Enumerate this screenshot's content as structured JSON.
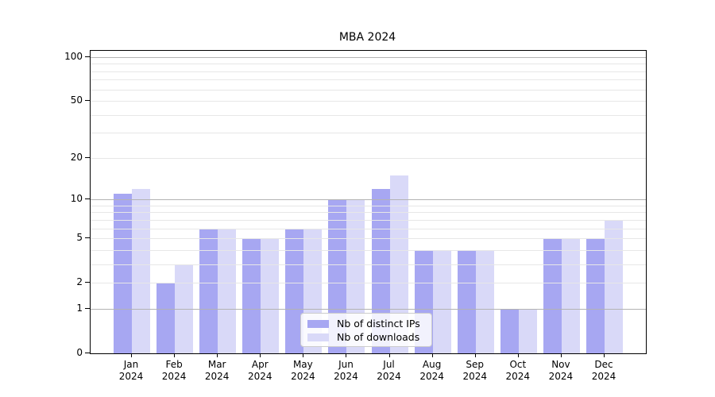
{
  "title": "MBA 2024",
  "chart_data": {
    "type": "bar",
    "title": "MBA 2024",
    "categories": [
      "Jan",
      "Feb",
      "Mar",
      "Apr",
      "May",
      "Jun",
      "Jul",
      "Aug",
      "Sep",
      "Oct",
      "Nov",
      "Dec"
    ],
    "x_year_label": "2024",
    "series": [
      {
        "name": "Nb of distinct IPs",
        "color": "#a7a7f2",
        "values": [
          11,
          2,
          6,
          5,
          6,
          10,
          12,
          4,
          4,
          1,
          5,
          5
        ]
      },
      {
        "name": "Nb of downloads",
        "color": "#d9d9f8",
        "values": [
          12,
          3,
          6,
          5,
          6,
          10,
          15,
          4,
          4,
          1,
          5,
          7
        ]
      }
    ],
    "yscale": "log(1+v)",
    "yticks": [
      100,
      50,
      20,
      10,
      5,
      2,
      1,
      0
    ],
    "minor_grid_values": [
      2,
      3,
      4,
      5,
      6,
      7,
      8,
      9,
      20,
      30,
      40,
      50,
      60,
      70,
      80,
      90
    ],
    "major_grid_values": [
      1,
      10,
      100
    ],
    "ylim": [
      0,
      110.5
    ],
    "grid": "horizontal minor+major, drawn above bars",
    "legend_position": "lower center"
  }
}
